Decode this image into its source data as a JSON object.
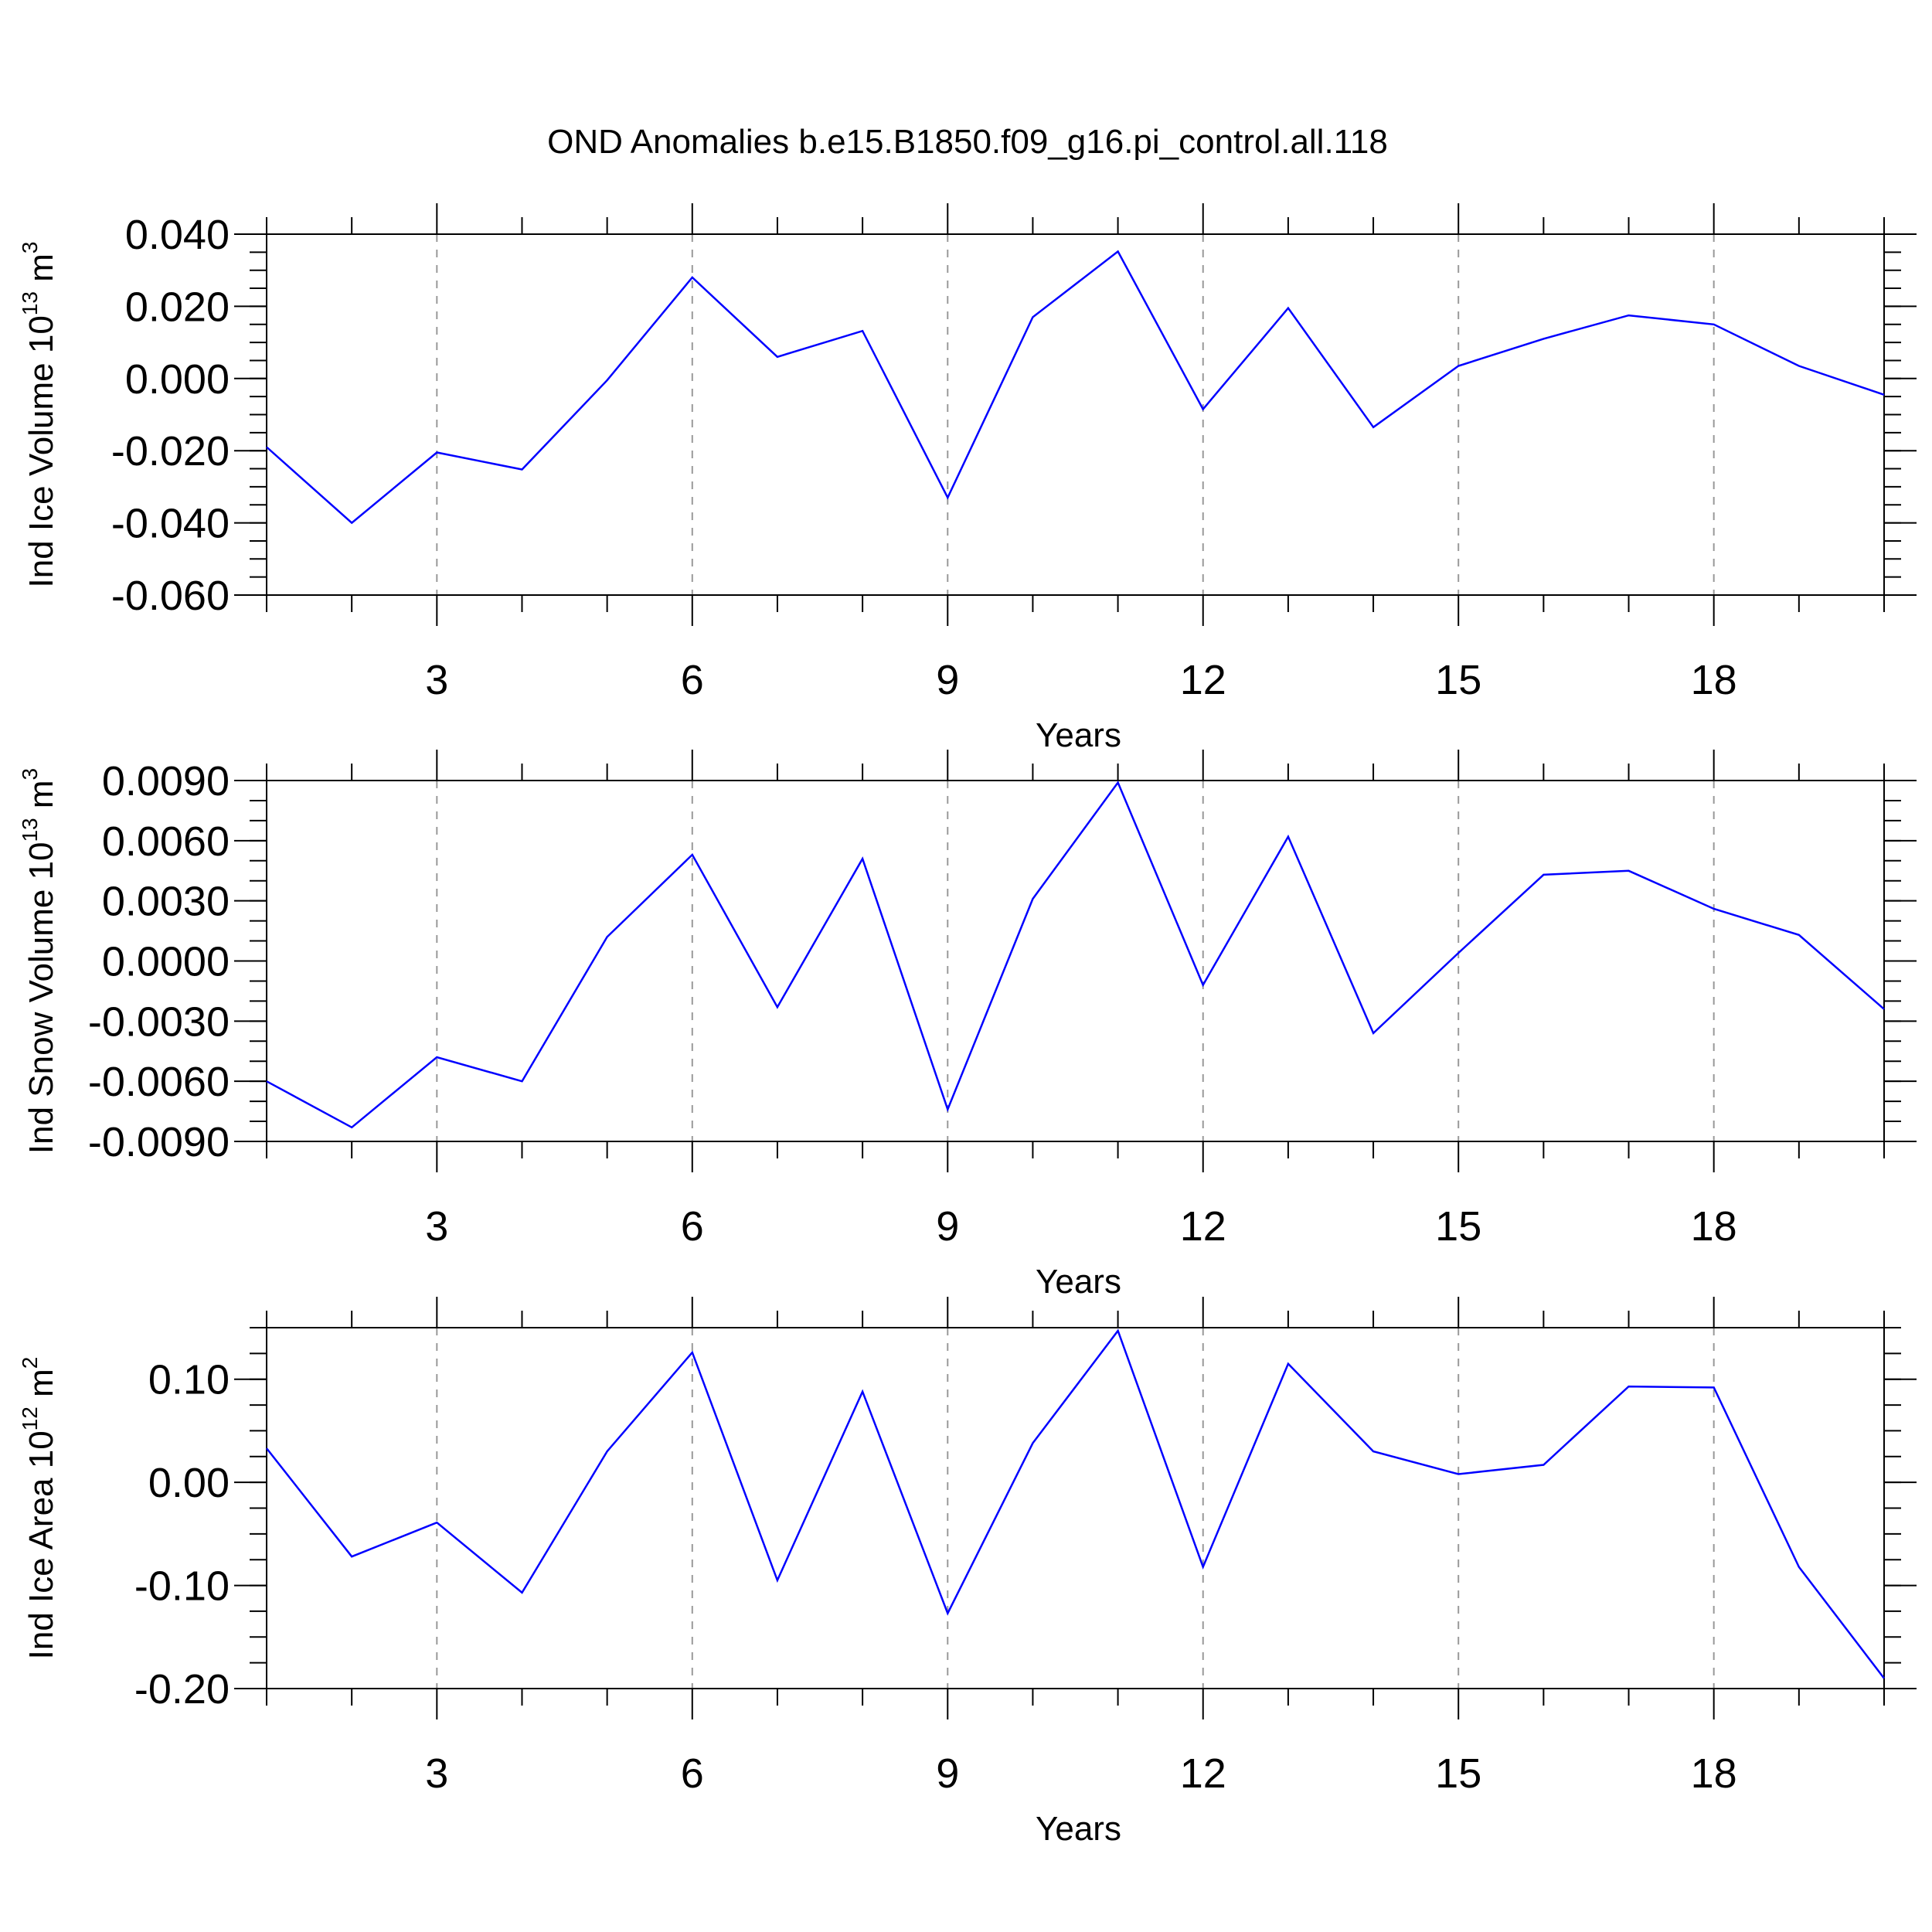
{
  "title": "OND Anomalies b.e15.B1850.f09_g16.pi_control.all.118",
  "chart_data": [
    {
      "type": "line",
      "ylabel_main": "Ind Ice Volume 10",
      "ylabel_exp": "13",
      "ylabel_unit": " m",
      "ylabel_unit_exp": "3",
      "xlabel": "Years",
      "xlim": [
        1,
        20
      ],
      "ylim": [
        -0.06,
        0.04
      ],
      "yticks": [
        0.04,
        0.02,
        0.0,
        -0.02,
        -0.04,
        -0.06
      ],
      "ytick_labels": [
        "0.040",
        "0.020",
        "0.000",
        "-0.020",
        "-0.040",
        "-0.060"
      ],
      "yminor_step": 0.005,
      "xticks": [
        3,
        6,
        9,
        12,
        15,
        18
      ],
      "xtick_labels": [
        "3",
        "6",
        "9",
        "12",
        "15",
        "18"
      ],
      "grid": true,
      "x": [
        1,
        2,
        3,
        4,
        5,
        6,
        7,
        8,
        9,
        10,
        11,
        12,
        13,
        14,
        15,
        16,
        17,
        18,
        19,
        20
      ],
      "values": [
        -0.019,
        -0.04,
        -0.0205,
        -0.0252,
        -0.0005,
        0.028,
        0.006,
        0.0132,
        -0.033,
        0.017,
        0.0352,
        -0.0085,
        0.0195,
        -0.0135,
        0.0035,
        0.011,
        0.0175,
        0.015,
        0.0035,
        -0.0045
      ]
    },
    {
      "type": "line",
      "ylabel_main": "Ind Snow Volume 10",
      "ylabel_exp": "13",
      "ylabel_unit": " m",
      "ylabel_unit_exp": "3",
      "xlabel": "Years",
      "xlim": [
        1,
        20
      ],
      "ylim": [
        -0.009,
        0.009
      ],
      "yticks": [
        0.009,
        0.006,
        0.003,
        0.0,
        -0.003,
        -0.006,
        -0.009
      ],
      "ytick_labels": [
        "0.0090",
        "0.0060",
        "0.0030",
        "0.0000",
        "-0.0030",
        "-0.0060",
        "-0.0090"
      ],
      "yminor_step": 0.001,
      "xticks": [
        3,
        6,
        9,
        12,
        15,
        18
      ],
      "xtick_labels": [
        "3",
        "6",
        "9",
        "12",
        "15",
        "18"
      ],
      "grid": true,
      "x": [
        1,
        2,
        3,
        4,
        5,
        6,
        7,
        8,
        9,
        10,
        11,
        12,
        13,
        14,
        15,
        16,
        17,
        18,
        19,
        20
      ],
      "values": [
        -0.006,
        -0.0083,
        -0.0048,
        -0.006,
        0.0012,
        0.0053,
        -0.0023,
        0.0051,
        -0.0074,
        0.0031,
        0.0089,
        -0.0012,
        0.0062,
        -0.0036,
        0.0004,
        0.0043,
        0.0045,
        0.0026,
        0.0013,
        -0.0024
      ]
    },
    {
      "type": "line",
      "ylabel_main": "Ind Ice Area 10",
      "ylabel_exp": "12",
      "ylabel_unit": " m",
      "ylabel_unit_exp": "2",
      "xlabel": "Years",
      "xlim": [
        1,
        20
      ],
      "ylim": [
        -0.2,
        0.15
      ],
      "yticks": [
        0.1,
        0.0,
        -0.1,
        -0.2
      ],
      "ytick_labels": [
        "0.10",
        "0.00",
        "-0.10",
        "-0.20"
      ],
      "yminor_step": 0.025,
      "xticks": [
        3,
        6,
        9,
        12,
        15,
        18
      ],
      "xtick_labels": [
        "3",
        "6",
        "9",
        "12",
        "15",
        "18"
      ],
      "grid": true,
      "x": [
        1,
        2,
        3,
        4,
        5,
        6,
        7,
        8,
        9,
        10,
        11,
        12,
        13,
        14,
        15,
        16,
        17,
        18,
        19,
        20
      ],
      "values": [
        0.033,
        -0.072,
        -0.039,
        -0.107,
        0.03,
        0.126,
        -0.095,
        0.088,
        -0.127,
        0.038,
        0.147,
        -0.082,
        0.115,
        0.03,
        0.008,
        0.017,
        0.093,
        0.092,
        -0.082,
        -0.19
      ]
    }
  ]
}
